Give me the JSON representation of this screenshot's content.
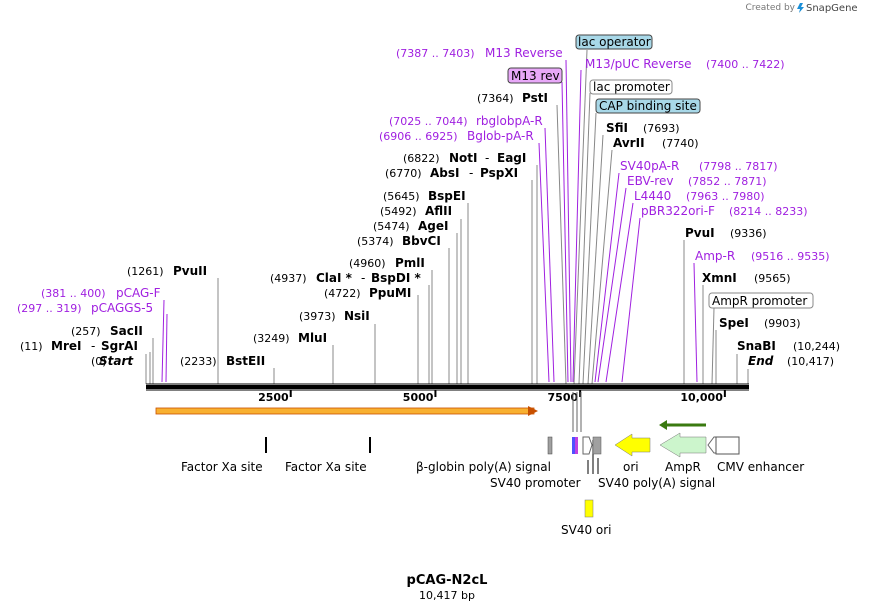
{
  "brand": {
    "created_by": "Created by",
    "name": "SnapGene",
    "logo_color": "#1a8fd8"
  },
  "map": {
    "title": "pCAG-N2cL",
    "length_label": "10,417 bp",
    "length_bp": 10417,
    "ticks": [
      {
        "label": "2500",
        "bp": 2500
      },
      {
        "label": "5000",
        "bp": 5000
      },
      {
        "label": "7500",
        "bp": 7500
      },
      {
        "label": "10,000",
        "bp": 10000
      }
    ]
  },
  "enzyme_labels": {
    "start": {
      "coord": "(0)",
      "name": "Start"
    },
    "mrei": {
      "coord": "(11)",
      "name": "MreI",
      "sep": "-",
      "name2": "SgrAI"
    },
    "sacii": {
      "coord": "(257)",
      "name": "SacII"
    },
    "pvuii": {
      "coord": "(1261)",
      "name": "PvuII"
    },
    "bsteii": {
      "coord": "(2233)",
      "name": "BstEII"
    },
    "mlui": {
      "coord": "(3249)",
      "name": "MluI"
    },
    "nsii": {
      "coord": "(3973)",
      "name": "NsiI"
    },
    "ppumi": {
      "coord": "(4722)",
      "name": "PpuMI"
    },
    "clai": {
      "coord": "(4937)",
      "name": "ClaI *",
      "sep": "-",
      "name2": "BspDI *"
    },
    "pmli": {
      "coord": "(4960)",
      "name": "PmlI"
    },
    "bbvci": {
      "coord": "(5374)",
      "name": "BbvCI"
    },
    "agei": {
      "coord": "(5474)",
      "name": "AgeI"
    },
    "aflii": {
      "coord": "(5492)",
      "name": "AflII"
    },
    "bspei": {
      "coord": "(5645)",
      "name": "BspEI"
    },
    "absi": {
      "coord": "(6770)",
      "name": "AbsI",
      "sep": "-",
      "name2": "PspXI"
    },
    "noti": {
      "coord": "(6822)",
      "name": "NotI",
      "sep": "-",
      "name2": "EagI"
    },
    "psti": {
      "coord": "(7364)",
      "name": "PstI"
    },
    "sfii": {
      "name": "SfiI",
      "coord": "(7693)"
    },
    "avrii": {
      "name": "AvrII",
      "coord": "(7740)"
    },
    "pvui": {
      "name": "PvuI",
      "coord": "(9336)"
    },
    "xmni": {
      "name": "XmnI",
      "coord": "(9565)"
    },
    "spei": {
      "name": "SpeI",
      "coord": "(9903)"
    },
    "snabi": {
      "name": "SnaBI",
      "coord": "(10,244)"
    },
    "end": {
      "name": "End",
      "coord": "(10,417)"
    }
  },
  "primer_labels": {
    "pcagf": {
      "coord": "(381 .. 400)",
      "name": "pCAG-F"
    },
    "pcaggs5": {
      "coord": "(297 .. 319)",
      "name": "pCAGGS-5"
    },
    "bglob": {
      "coord": "(6906 .. 6925)",
      "name": "Bglob-pA-R"
    },
    "rbglob": {
      "coord": "(7025 .. 7044)",
      "name": "rbglobpA-R"
    },
    "m13rev": {
      "coord": "(7387 .. 7403)",
      "name": "M13 Reverse"
    },
    "m13puc": {
      "name": "M13/pUC Reverse",
      "coord": "(7400 .. 7422)"
    },
    "sv40pa": {
      "name": "SV40pA-R",
      "coord": "(7798 .. 7817)"
    },
    "ebvrev": {
      "name": "EBV-rev",
      "coord": "(7852 .. 7871)"
    },
    "l4440": {
      "name": "L4440",
      "coord": "(7963 .. 7980)"
    },
    "pbr322": {
      "name": "pBR322ori-F",
      "coord": "(8214 .. 8233)"
    },
    "ampr": {
      "name": "Amp-R",
      "coord": "(9516 .. 9535)"
    }
  },
  "boxed_labels": {
    "lac_operator": "lac operator",
    "m13_rev": "M13 rev",
    "lac_promoter": "lac promoter",
    "cap_site": "CAP binding site",
    "ampr_promoter": "AmpR promoter"
  },
  "features": {
    "factor_xa_1": "Factor Xa site",
    "factor_xa_2": "Factor Xa site",
    "beta_globin": "β-globin poly(A) signal",
    "sv40_promoter": "SV40 promoter",
    "sv40_polya": "SV40 poly(A) signal",
    "ori": "ori",
    "ampr": "AmpR",
    "cmv": "CMV enhancer",
    "sv40_ori": "SV40 ori"
  },
  "colors": {
    "primer": "#a020e0",
    "orf_fill": "#f8b030",
    "orf_stroke": "#c85000",
    "ori_fill": "#ffff00",
    "ampr_fill": "#ccf5cc",
    "ampr_arrow": "#3a7a10",
    "lac_box": "#a8d8e8",
    "m13_box": "#e8a8f8",
    "gray_feature": "#a0a0a0"
  }
}
